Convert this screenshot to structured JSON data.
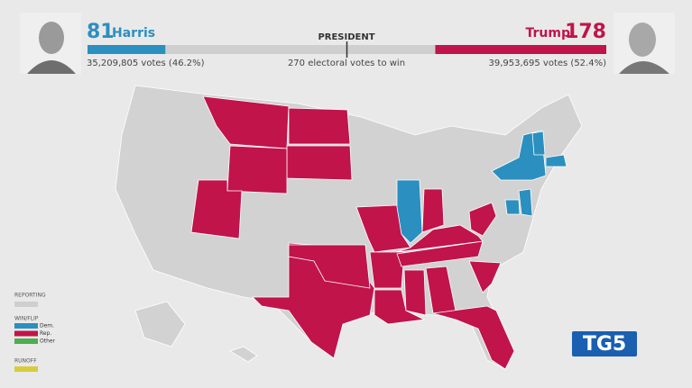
{
  "header": {
    "harris": {
      "electoral_votes": 81,
      "name": "Harris",
      "popular_votes": "35,209,805 votes (46.2%)",
      "color": "#2b8fc0"
    },
    "trump": {
      "electoral_votes": 178,
      "name": "Trump",
      "popular_votes": "39,953,695 votes (52.4%)",
      "color": "#c0144a"
    },
    "race": "PRESIDENT",
    "to_win": {
      "votes": 270,
      "label": "electoral votes to win"
    }
  },
  "legend": {
    "reporting": "REPORTING",
    "win_flip": "WIN/FLIP",
    "items": [
      {
        "label": "Dem.",
        "color": "#2b8fc0"
      },
      {
        "label": "Rep.",
        "color": "#c0144a"
      },
      {
        "label": "Other",
        "color": "#4caf50"
      }
    ],
    "runoff": "RUNOFF",
    "runoff_color": "#d8cc3c"
  },
  "logo": "TG5"
}
